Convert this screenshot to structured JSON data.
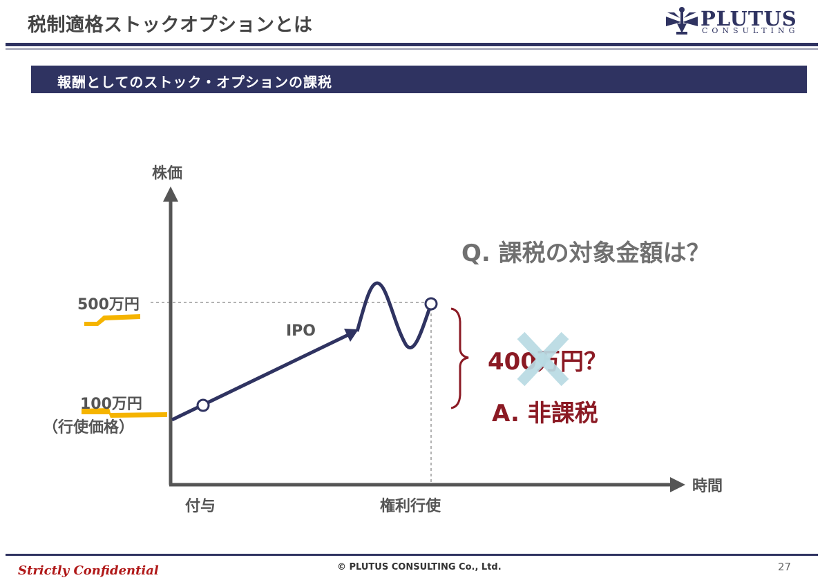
{
  "header": {
    "title": "税制適格ストックオプションとは",
    "logo_text": "PLUTUS",
    "logo_sub": "CONSULTING"
  },
  "section": {
    "title": "報酬としてのストック・オプションの課税"
  },
  "diagram": {
    "y_axis_label": "株価",
    "x_axis_label": "時間",
    "price_high": "500万円",
    "price_low": "100万円",
    "price_low_note": "（行使価格）",
    "ipo_label": "IPO",
    "grant_label": "付与",
    "exercise_label": "権利行使",
    "question": "Q. 課税の対象金額は？",
    "wrong_answer": "400万円？",
    "answer": "A. 非課税",
    "colors": {
      "navy": "#2f3361",
      "axis": "#555555",
      "maroon": "#8b1a24",
      "cross": "#b9dbe3",
      "highlight": "#f5b400"
    }
  },
  "footer": {
    "left": "Strictly Confidential",
    "center": "© PLUTUS CONSULTING Co., Ltd.",
    "page": "27"
  }
}
